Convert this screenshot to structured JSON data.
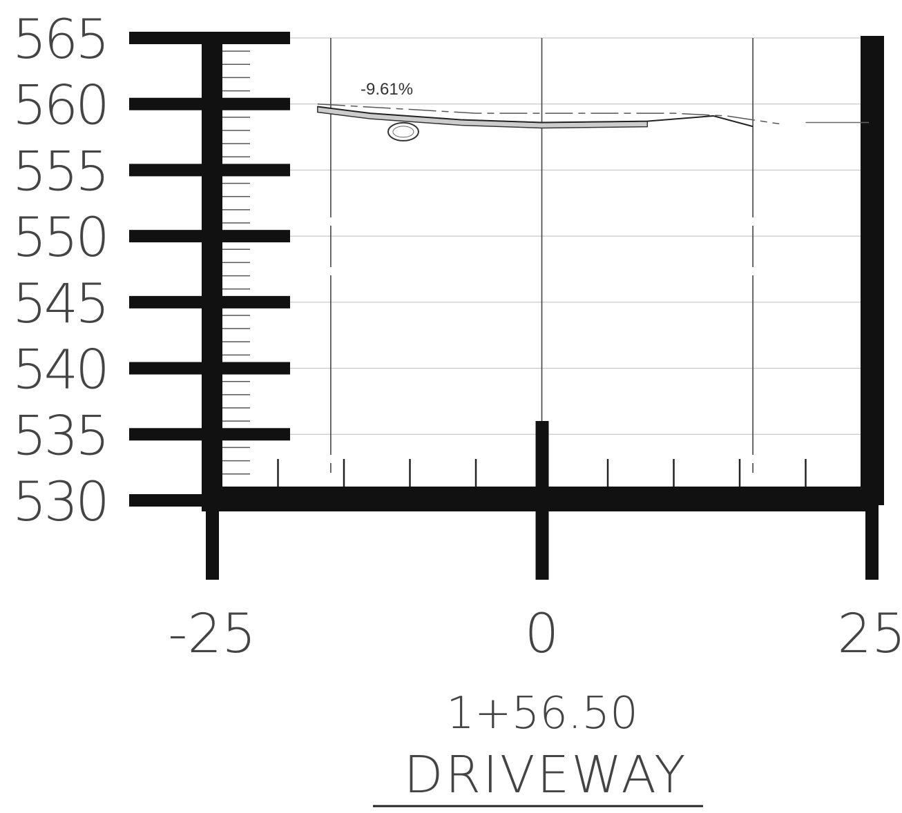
{
  "chart_data": {
    "type": "line",
    "x_ticks": [
      "-25",
      "0",
      "25"
    ],
    "y_ticks": [
      "530",
      "535",
      "540",
      "545",
      "550",
      "555",
      "560",
      "565"
    ],
    "xlim": [
      -25,
      25
    ],
    "ylim": [
      530,
      565
    ],
    "grid": true,
    "station_label": "1+56.50",
    "title": "DRIVEWAY",
    "annotations": [
      {
        "text": "-9.61%",
        "x": -13.5,
        "y": 560.8
      }
    ],
    "series": [
      {
        "x": [
          -17,
          -13,
          -6,
          0,
          8,
          13,
          16
        ],
        "values": [
          559.8,
          559.3,
          558.8,
          558.6,
          558.7,
          559.1,
          558.3
        ]
      }
    ],
    "ellipse_marker": {
      "x": -10.5,
      "y": 557.9
    }
  }
}
